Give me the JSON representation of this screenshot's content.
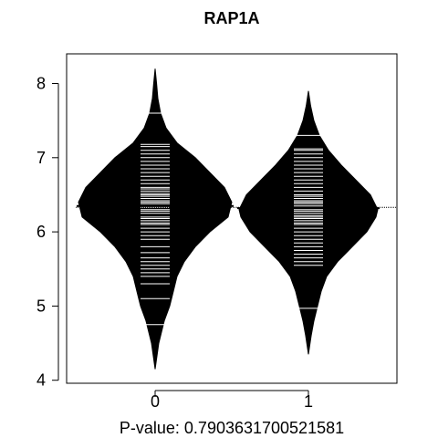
{
  "chart_data": {
    "type": "beanplot",
    "title": "RAP1A",
    "xlabel": "P-value: 0.7903631700521581",
    "ylabel": "",
    "categories": [
      "0",
      "1"
    ],
    "yticks": [
      4,
      5,
      6,
      7,
      8
    ],
    "ylim": [
      3.96,
      8.4
    ],
    "overall_mean": 6.33,
    "grid": false,
    "colors": {
      "bean": "#000000",
      "lines": "#ffffff",
      "background": "#ffffff",
      "frame": "#000000"
    },
    "series": [
      {
        "category": "0",
        "mean": 6.35,
        "max_half_width": 0.42,
        "density": [
          [
            4.15,
            0.0
          ],
          [
            4.5,
            0.02
          ],
          [
            4.8,
            0.05
          ],
          [
            5.0,
            0.08
          ],
          [
            5.2,
            0.1
          ],
          [
            5.4,
            0.12
          ],
          [
            5.6,
            0.16
          ],
          [
            5.8,
            0.22
          ],
          [
            6.0,
            0.3
          ],
          [
            6.2,
            0.4
          ],
          [
            6.4,
            0.42
          ],
          [
            6.6,
            0.38
          ],
          [
            6.8,
            0.3
          ],
          [
            7.0,
            0.22
          ],
          [
            7.2,
            0.12
          ],
          [
            7.4,
            0.06
          ],
          [
            7.6,
            0.03
          ],
          [
            7.8,
            0.015
          ],
          [
            8.0,
            0.008
          ],
          [
            8.2,
            0.0
          ]
        ],
        "points": [
          4.75,
          5.1,
          5.3,
          5.4,
          5.45,
          5.5,
          5.55,
          5.6,
          5.65,
          5.72,
          5.8,
          5.9,
          5.95,
          6.0,
          6.05,
          6.1,
          6.12,
          6.15,
          6.18,
          6.2,
          6.25,
          6.28,
          6.3,
          6.33,
          6.35,
          6.38,
          6.4,
          6.42,
          6.45,
          6.48,
          6.5,
          6.52,
          6.55,
          6.58,
          6.6,
          6.65,
          6.7,
          6.75,
          6.8,
          6.85,
          6.9,
          6.95,
          7.0,
          7.05,
          7.1,
          7.15,
          7.18,
          7.6
        ]
      },
      {
        "category": "1",
        "mean": 6.32,
        "max_half_width": 0.38,
        "density": [
          [
            4.35,
            0.0
          ],
          [
            4.6,
            0.015
          ],
          [
            4.8,
            0.03
          ],
          [
            5.0,
            0.05
          ],
          [
            5.2,
            0.07
          ],
          [
            5.4,
            0.1
          ],
          [
            5.6,
            0.16
          ],
          [
            5.8,
            0.24
          ],
          [
            6.0,
            0.32
          ],
          [
            6.2,
            0.37
          ],
          [
            6.3,
            0.38
          ],
          [
            6.5,
            0.34
          ],
          [
            6.7,
            0.26
          ],
          [
            6.9,
            0.18
          ],
          [
            7.1,
            0.11
          ],
          [
            7.3,
            0.06
          ],
          [
            7.5,
            0.03
          ],
          [
            7.7,
            0.012
          ],
          [
            7.9,
            0.0
          ]
        ],
        "points": [
          4.97,
          5.55,
          5.6,
          5.65,
          5.7,
          5.75,
          5.8,
          5.85,
          5.9,
          5.95,
          6.0,
          6.05,
          6.1,
          6.12,
          6.15,
          6.18,
          6.2,
          6.22,
          6.25,
          6.28,
          6.3,
          6.32,
          6.35,
          6.38,
          6.4,
          6.42,
          6.45,
          6.48,
          6.5,
          6.55,
          6.6,
          6.65,
          6.7,
          6.75,
          6.8,
          6.85,
          6.9,
          6.95,
          7.0,
          7.05,
          7.1,
          7.12,
          7.3
        ]
      }
    ]
  }
}
